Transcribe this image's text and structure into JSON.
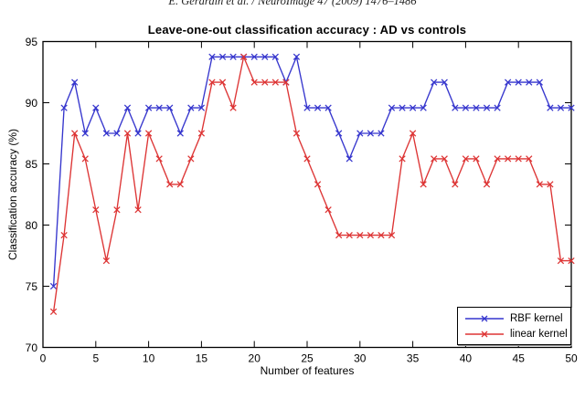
{
  "header": {
    "citation": "E. Gerardin et al. / NeuroImage 47 (2009) 1476–1486"
  },
  "chart_data": {
    "type": "line",
    "title": "Leave-one-out classification accuracy : AD vs controls",
    "xlabel": "Number of features",
    "ylabel": "Classification accuracy (%)",
    "xlim": [
      0,
      50
    ],
    "ylim": [
      70,
      95
    ],
    "xticks": [
      0,
      5,
      10,
      15,
      20,
      25,
      30,
      35,
      40,
      45,
      50
    ],
    "yticks": [
      70,
      75,
      80,
      85,
      90,
      95
    ],
    "grid": false,
    "marker": "x",
    "legend_position": "bottom-right",
    "x": [
      1,
      2,
      3,
      4,
      5,
      6,
      7,
      8,
      9,
      10,
      11,
      12,
      13,
      14,
      15,
      16,
      17,
      18,
      19,
      20,
      21,
      22,
      23,
      24,
      25,
      26,
      27,
      28,
      29,
      30,
      31,
      32,
      33,
      34,
      35,
      36,
      37,
      38,
      39,
      40,
      41,
      42,
      43,
      44,
      45,
      46,
      47,
      48,
      49,
      50
    ],
    "series": [
      {
        "name": "RBF kernel",
        "color": "#3535cd",
        "values": [
          75.0,
          89.58,
          91.67,
          87.5,
          89.58,
          87.5,
          87.5,
          89.58,
          87.5,
          89.58,
          89.58,
          89.58,
          87.5,
          89.58,
          89.58,
          93.75,
          93.75,
          93.75,
          93.75,
          93.75,
          93.75,
          93.75,
          91.67,
          93.75,
          89.58,
          89.58,
          89.58,
          87.5,
          85.42,
          87.5,
          87.5,
          87.5,
          89.58,
          89.58,
          89.58,
          89.58,
          91.67,
          91.67,
          89.58,
          89.58,
          89.58,
          89.58,
          89.58,
          91.67,
          91.67,
          91.67,
          91.67,
          89.58,
          89.58,
          89.58
        ]
      },
      {
        "name": "linear kernel",
        "color": "#dd3434",
        "values": [
          72.92,
          79.17,
          87.5,
          85.42,
          81.25,
          77.08,
          81.25,
          87.5,
          81.25,
          87.5,
          85.42,
          83.33,
          83.33,
          85.42,
          87.5,
          91.67,
          91.67,
          89.58,
          93.75,
          91.67,
          91.67,
          91.67,
          91.67,
          87.5,
          85.42,
          83.33,
          81.25,
          79.17,
          79.17,
          79.17,
          79.17,
          79.17,
          79.17,
          85.42,
          87.5,
          83.33,
          85.42,
          85.42,
          83.33,
          85.42,
          85.42,
          83.33,
          85.42,
          85.42,
          85.42,
          85.42,
          83.33,
          83.33,
          77.08,
          77.08
        ]
      }
    ]
  }
}
